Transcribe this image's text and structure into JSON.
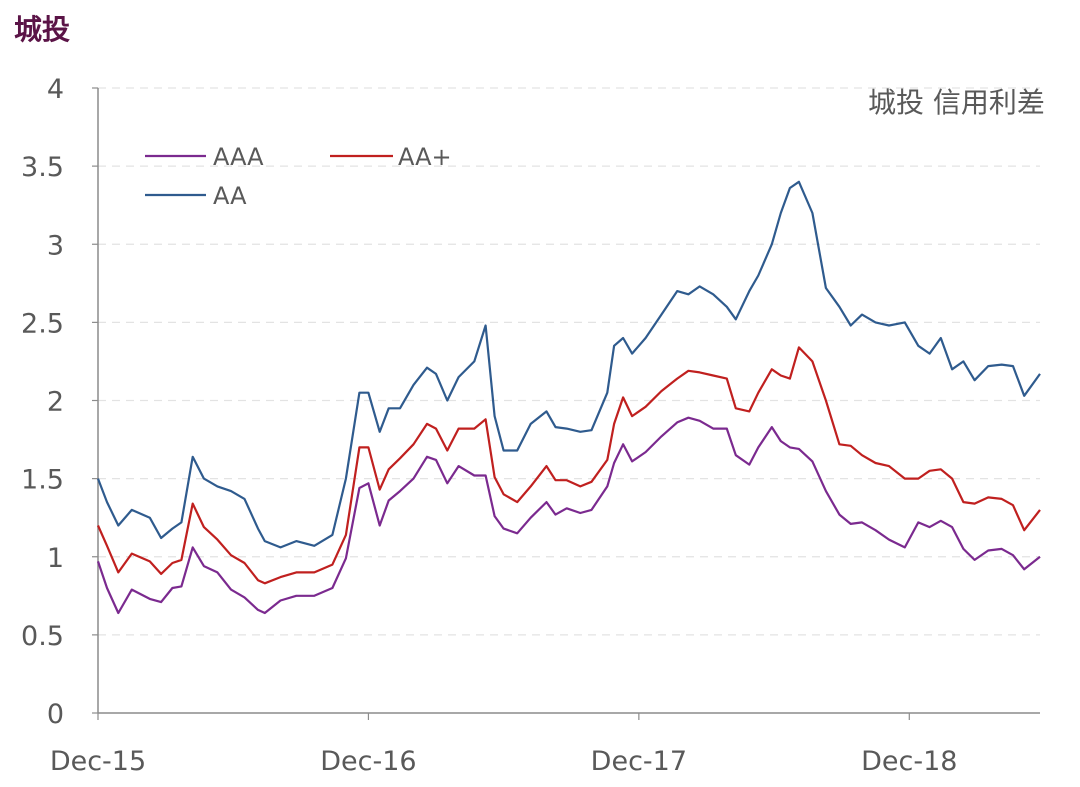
{
  "page": {
    "heading": "城投"
  },
  "chart_data": {
    "type": "line",
    "title": "城投 信用利差",
    "xlabel": "",
    "ylabel": "",
    "ylim": [
      0,
      4
    ],
    "yticks": [
      "0",
      "0.5",
      "1",
      "1.5",
      "2",
      "2.5",
      "3",
      "3.5",
      "4"
    ],
    "xticks": [
      "Dec-15",
      "Dec-16",
      "Dec-17",
      "Dec-18"
    ],
    "xtick_values": [
      0,
      12,
      24,
      36
    ],
    "xlim": [
      0,
      41.8
    ],
    "grid": "horizontal-dashed",
    "legend": {
      "placement": "top-left"
    },
    "colors": {
      "AAA": "#7b2a8f",
      "AA+": "#c0201f",
      "AA": "#2f5b8e"
    },
    "series": [
      {
        "name": "AAA",
        "points": [
          [
            0,
            0.97
          ],
          [
            0.4,
            0.8
          ],
          [
            0.9,
            0.64
          ],
          [
            1.5,
            0.79
          ],
          [
            2.3,
            0.73
          ],
          [
            2.8,
            0.71
          ],
          [
            3.3,
            0.8
          ],
          [
            3.7,
            0.81
          ],
          [
            4.2,
            1.06
          ],
          [
            4.7,
            0.94
          ],
          [
            5.3,
            0.9
          ],
          [
            5.9,
            0.79
          ],
          [
            6.5,
            0.74
          ],
          [
            7.1,
            0.66
          ],
          [
            7.4,
            0.64
          ],
          [
            8.1,
            0.72
          ],
          [
            8.8,
            0.75
          ],
          [
            9.6,
            0.75
          ],
          [
            10.4,
            0.8
          ],
          [
            11,
            0.99
          ],
          [
            11.6,
            1.44
          ],
          [
            12,
            1.47
          ],
          [
            12.5,
            1.2
          ],
          [
            12.9,
            1.36
          ],
          [
            13.4,
            1.42
          ],
          [
            14,
            1.5
          ],
          [
            14.6,
            1.64
          ],
          [
            15,
            1.62
          ],
          [
            15.5,
            1.47
          ],
          [
            16,
            1.58
          ],
          [
            16.7,
            1.52
          ],
          [
            17.2,
            1.52
          ],
          [
            17.6,
            1.26
          ],
          [
            18,
            1.18
          ],
          [
            18.6,
            1.15
          ],
          [
            19.2,
            1.25
          ],
          [
            19.9,
            1.35
          ],
          [
            20.3,
            1.27
          ],
          [
            20.8,
            1.31
          ],
          [
            21.4,
            1.28
          ],
          [
            21.9,
            1.3
          ],
          [
            22.6,
            1.45
          ],
          [
            22.9,
            1.6
          ],
          [
            23.3,
            1.72
          ],
          [
            23.7,
            1.61
          ],
          [
            24.3,
            1.67
          ],
          [
            25,
            1.77
          ],
          [
            25.7,
            1.86
          ],
          [
            26.2,
            1.89
          ],
          [
            26.7,
            1.87
          ],
          [
            27.3,
            1.82
          ],
          [
            27.9,
            1.82
          ],
          [
            28.3,
            1.65
          ],
          [
            28.9,
            1.59
          ],
          [
            29.3,
            1.7
          ],
          [
            29.9,
            1.83
          ],
          [
            30.3,
            1.74
          ],
          [
            30.7,
            1.7
          ],
          [
            31.1,
            1.69
          ],
          [
            31.7,
            1.61
          ],
          [
            32.3,
            1.42
          ],
          [
            32.9,
            1.27
          ],
          [
            33.4,
            1.21
          ],
          [
            33.9,
            1.22
          ],
          [
            34.5,
            1.17
          ],
          [
            35.1,
            1.11
          ],
          [
            35.8,
            1.06
          ],
          [
            36.4,
            1.22
          ],
          [
            36.9,
            1.19
          ],
          [
            37.4,
            1.23
          ],
          [
            37.9,
            1.19
          ],
          [
            38.4,
            1.05
          ],
          [
            38.9,
            0.98
          ],
          [
            39.5,
            1.04
          ],
          [
            40.1,
            1.05
          ],
          [
            40.6,
            1.01
          ],
          [
            41.1,
            0.92
          ],
          [
            41.8,
            1.0
          ]
        ]
      },
      {
        "name": "AA+",
        "points": [
          [
            0,
            1.2
          ],
          [
            0.4,
            1.07
          ],
          [
            0.9,
            0.9
          ],
          [
            1.5,
            1.02
          ],
          [
            2.3,
            0.97
          ],
          [
            2.8,
            0.89
          ],
          [
            3.3,
            0.96
          ],
          [
            3.7,
            0.98
          ],
          [
            4.2,
            1.34
          ],
          [
            4.7,
            1.19
          ],
          [
            5.3,
            1.11
          ],
          [
            5.9,
            1.01
          ],
          [
            6.5,
            0.96
          ],
          [
            7.1,
            0.85
          ],
          [
            7.4,
            0.83
          ],
          [
            8.1,
            0.87
          ],
          [
            8.8,
            0.9
          ],
          [
            9.6,
            0.9
          ],
          [
            10.4,
            0.95
          ],
          [
            11,
            1.14
          ],
          [
            11.6,
            1.7
          ],
          [
            12,
            1.7
          ],
          [
            12.5,
            1.43
          ],
          [
            12.9,
            1.56
          ],
          [
            13.4,
            1.63
          ],
          [
            14,
            1.72
          ],
          [
            14.6,
            1.85
          ],
          [
            15,
            1.82
          ],
          [
            15.5,
            1.68
          ],
          [
            16,
            1.82
          ],
          [
            16.7,
            1.82
          ],
          [
            17.2,
            1.88
          ],
          [
            17.6,
            1.51
          ],
          [
            18,
            1.4
          ],
          [
            18.6,
            1.35
          ],
          [
            19.2,
            1.45
          ],
          [
            19.9,
            1.58
          ],
          [
            20.3,
            1.49
          ],
          [
            20.8,
            1.49
          ],
          [
            21.4,
            1.45
          ],
          [
            21.9,
            1.48
          ],
          [
            22.6,
            1.62
          ],
          [
            22.9,
            1.85
          ],
          [
            23.3,
            2.02
          ],
          [
            23.7,
            1.9
          ],
          [
            24.3,
            1.96
          ],
          [
            25,
            2.06
          ],
          [
            25.7,
            2.14
          ],
          [
            26.2,
            2.19
          ],
          [
            26.7,
            2.18
          ],
          [
            27.3,
            2.16
          ],
          [
            27.9,
            2.14
          ],
          [
            28.3,
            1.95
          ],
          [
            28.9,
            1.93
          ],
          [
            29.3,
            2.05
          ],
          [
            29.9,
            2.2
          ],
          [
            30.3,
            2.16
          ],
          [
            30.7,
            2.14
          ],
          [
            31.1,
            2.34
          ],
          [
            31.7,
            2.25
          ],
          [
            32.3,
            2.0
          ],
          [
            32.9,
            1.72
          ],
          [
            33.4,
            1.71
          ],
          [
            33.9,
            1.65
          ],
          [
            34.5,
            1.6
          ],
          [
            35.1,
            1.58
          ],
          [
            35.8,
            1.5
          ],
          [
            36.4,
            1.5
          ],
          [
            36.9,
            1.55
          ],
          [
            37.4,
            1.56
          ],
          [
            37.9,
            1.5
          ],
          [
            38.4,
            1.35
          ],
          [
            38.9,
            1.34
          ],
          [
            39.5,
            1.38
          ],
          [
            40.1,
            1.37
          ],
          [
            40.6,
            1.33
          ],
          [
            41.1,
            1.17
          ],
          [
            41.8,
            1.3
          ]
        ]
      },
      {
        "name": "AA",
        "points": [
          [
            0,
            1.5
          ],
          [
            0.4,
            1.35
          ],
          [
            0.9,
            1.2
          ],
          [
            1.5,
            1.3
          ],
          [
            2.3,
            1.25
          ],
          [
            2.8,
            1.12
          ],
          [
            3.3,
            1.18
          ],
          [
            3.7,
            1.22
          ],
          [
            4.2,
            1.64
          ],
          [
            4.7,
            1.5
          ],
          [
            5.3,
            1.45
          ],
          [
            5.9,
            1.42
          ],
          [
            6.5,
            1.37
          ],
          [
            7.1,
            1.18
          ],
          [
            7.4,
            1.1
          ],
          [
            8.1,
            1.06
          ],
          [
            8.8,
            1.1
          ],
          [
            9.6,
            1.07
          ],
          [
            10.4,
            1.14
          ],
          [
            11,
            1.5
          ],
          [
            11.6,
            2.05
          ],
          [
            12,
            2.05
          ],
          [
            12.5,
            1.8
          ],
          [
            12.9,
            1.95
          ],
          [
            13.4,
            1.95
          ],
          [
            14,
            2.1
          ],
          [
            14.6,
            2.21
          ],
          [
            15,
            2.17
          ],
          [
            15.5,
            2.0
          ],
          [
            16,
            2.15
          ],
          [
            16.7,
            2.25
          ],
          [
            17.2,
            2.48
          ],
          [
            17.6,
            1.9
          ],
          [
            18,
            1.68
          ],
          [
            18.6,
            1.68
          ],
          [
            19.2,
            1.85
          ],
          [
            19.9,
            1.93
          ],
          [
            20.3,
            1.83
          ],
          [
            20.8,
            1.82
          ],
          [
            21.4,
            1.8
          ],
          [
            21.9,
            1.81
          ],
          [
            22.6,
            2.05
          ],
          [
            22.9,
            2.35
          ],
          [
            23.3,
            2.4
          ],
          [
            23.7,
            2.3
          ],
          [
            24.3,
            2.4
          ],
          [
            25,
            2.55
          ],
          [
            25.7,
            2.7
          ],
          [
            26.2,
            2.68
          ],
          [
            26.7,
            2.73
          ],
          [
            27.3,
            2.68
          ],
          [
            27.9,
            2.6
          ],
          [
            28.3,
            2.52
          ],
          [
            28.9,
            2.7
          ],
          [
            29.3,
            2.8
          ],
          [
            29.9,
            3.0
          ],
          [
            30.3,
            3.2
          ],
          [
            30.7,
            3.36
          ],
          [
            31.1,
            3.4
          ],
          [
            31.7,
            3.2
          ],
          [
            32.3,
            2.72
          ],
          [
            32.9,
            2.6
          ],
          [
            33.4,
            2.48
          ],
          [
            33.9,
            2.55
          ],
          [
            34.5,
            2.5
          ],
          [
            35.1,
            2.48
          ],
          [
            35.8,
            2.5
          ],
          [
            36.4,
            2.35
          ],
          [
            36.9,
            2.3
          ],
          [
            37.4,
            2.4
          ],
          [
            37.9,
            2.2
          ],
          [
            38.4,
            2.25
          ],
          [
            38.9,
            2.13
          ],
          [
            39.5,
            2.22
          ],
          [
            40.1,
            2.23
          ],
          [
            40.6,
            2.22
          ],
          [
            41.1,
            2.03
          ],
          [
            41.8,
            2.17
          ]
        ]
      }
    ]
  }
}
